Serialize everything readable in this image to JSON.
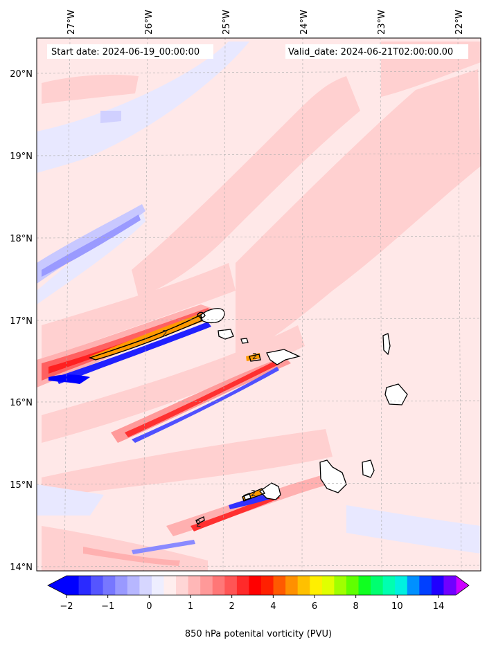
{
  "header": {
    "start_date": "Start date: 2024-06-19_00:00:00",
    "valid_date": "Valid_date: 2024-06-21T02:00:00.00"
  },
  "longitude_labels": [
    "27°W",
    "26°W",
    "25°W",
    "24°W",
    "23°W",
    "22°W"
  ],
  "latitude_labels": [
    "20°N",
    "19°N",
    "18°N",
    "17°N",
    "16°N",
    "15°N",
    "14°N"
  ],
  "contour_labels": [
    "2",
    "2",
    "2",
    "2"
  ],
  "colorbar": {
    "tick_labels": [
      "−2",
      "−1",
      "0",
      "1",
      "2",
      "4",
      "6",
      "8",
      "10",
      "14"
    ],
    "label": "850 hPa potenital vorticity (PVU)",
    "colors": [
      "#0000ff",
      "#2a2aff",
      "#5555ff",
      "#7777ff",
      "#9999ff",
      "#b7b7ff",
      "#d6d6ff",
      "#eeeeff",
      "#ffeeee",
      "#ffd6d6",
      "#ffb7b7",
      "#ff9999",
      "#ff7777",
      "#ff5555",
      "#ff2a2a",
      "#ff0000",
      "#ff2000",
      "#ff5a00",
      "#ff9000",
      "#ffc000",
      "#ffef00",
      "#e0ff00",
      "#a0ff00",
      "#60ff00",
      "#10ff20",
      "#00ff70",
      "#00ffb0",
      "#00f0e0",
      "#0090ff",
      "#0040ff",
      "#2000ff",
      "#7000ff"
    ],
    "under_color": "#0000ff",
    "over_color": "#cc00ff"
  },
  "colors": {
    "background_pv": "#ffe8e8",
    "positive_light": "#ffd0d0",
    "positive_strong": "#ff3a3a",
    "negative_light": "#e8e8ff",
    "negative_strong": "#1a1aff",
    "orange": "#ff9a00"
  }
}
